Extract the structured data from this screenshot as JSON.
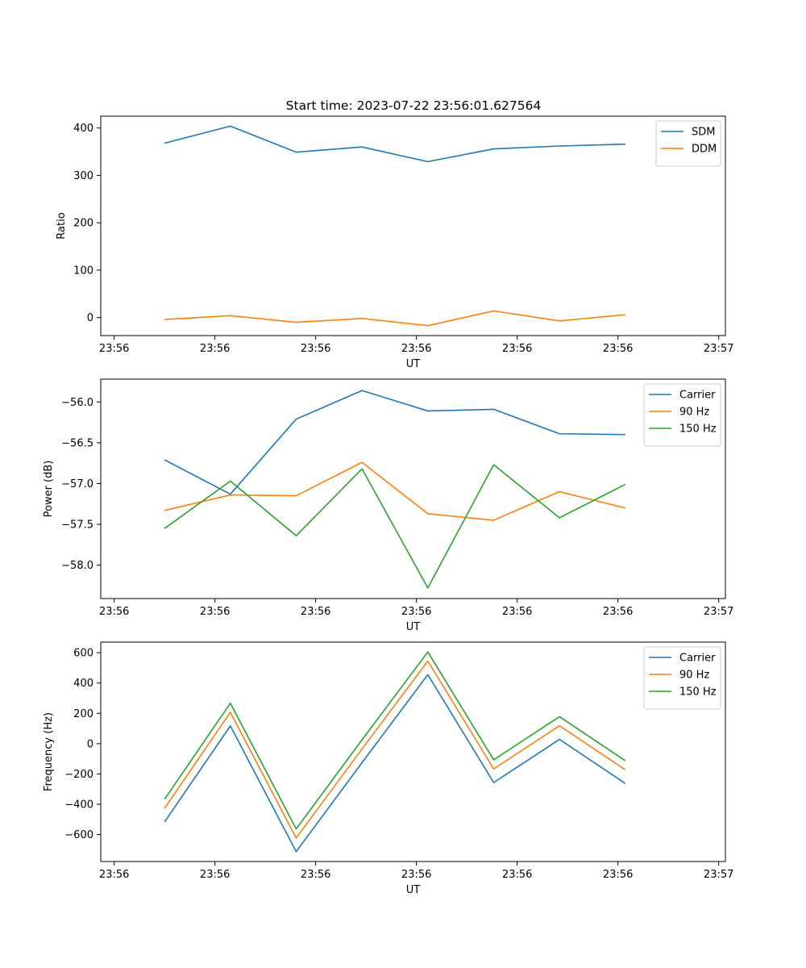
{
  "figure": {
    "title": "Start time: 2023-07-22 23:56:01.627564"
  },
  "chart_data": [
    {
      "type": "line",
      "xlabel": "UT",
      "ylabel": "Ratio",
      "xlim": [
        -0.2,
        9.1
      ],
      "xticks": [
        0,
        1.5,
        3,
        4.5,
        6,
        7.5,
        9
      ],
      "xtick_labels": [
        "23:56",
        "23:56",
        "23:56",
        "23:56",
        "23:56",
        "23:56",
        "23:57"
      ],
      "ylim": [
        -38,
        425
      ],
      "yticks": [
        0,
        100,
        200,
        300,
        400
      ],
      "ytick_labels": [
        "0",
        "100",
        "200",
        "300",
        "400"
      ],
      "x": [
        0.75,
        1.73,
        2.71,
        3.69,
        4.67,
        5.65,
        6.63,
        7.61
      ],
      "series": [
        {
          "name": "SDM",
          "color": "#1f77b4",
          "values": [
            368,
            404,
            349,
            360,
            329,
            356,
            362,
            366
          ]
        },
        {
          "name": "DDM",
          "color": "#ff7f0e",
          "values": [
            -4,
            4,
            -10,
            -2,
            -17,
            14,
            -7,
            6
          ]
        }
      ],
      "legend": "upper-right"
    },
    {
      "type": "line",
      "xlabel": "UT",
      "ylabel": "Power (dB)",
      "xlim": [
        -0.2,
        9.1
      ],
      "xticks": [
        0,
        1.5,
        3,
        4.5,
        6,
        7.5,
        9
      ],
      "xtick_labels": [
        "23:56",
        "23:56",
        "23:56",
        "23:56",
        "23:56",
        "23:56",
        "23:57"
      ],
      "ylim": [
        -58.41,
        -55.72
      ],
      "yticks": [
        -58.0,
        -57.5,
        -57.0,
        -56.5,
        -56.0
      ],
      "ytick_labels": [
        "−58.0",
        "−57.5",
        "−57.0",
        "−56.5",
        "−56.0"
      ],
      "x": [
        0.75,
        1.73,
        2.71,
        3.69,
        4.67,
        5.65,
        6.63,
        7.61
      ],
      "series": [
        {
          "name": "Carrier",
          "color": "#1f77b4",
          "values": [
            -56.71,
            -57.13,
            -56.21,
            -55.86,
            -56.11,
            -56.09,
            -56.39,
            -56.4
          ]
        },
        {
          "name": "90 Hz",
          "color": "#ff7f0e",
          "values": [
            -57.33,
            -57.14,
            -57.15,
            -56.74,
            -57.37,
            -57.45,
            -57.1,
            -57.3
          ]
        },
        {
          "name": "150 Hz",
          "color": "#2ca02c",
          "values": [
            -57.55,
            -56.97,
            -57.64,
            -56.82,
            -58.28,
            -56.77,
            -57.42,
            -57.01
          ]
        }
      ],
      "legend": "upper-right"
    },
    {
      "type": "line",
      "xlabel": "UT",
      "ylabel": "Frequency (Hz)",
      "xlim": [
        -0.2,
        9.1
      ],
      "xticks": [
        0,
        1.5,
        3,
        4.5,
        6,
        7.5,
        9
      ],
      "xtick_labels": [
        "23:56",
        "23:56",
        "23:56",
        "23:56",
        "23:56",
        "23:56",
        "23:57"
      ],
      "ylim": [
        -778,
        670
      ],
      "yticks": [
        -600,
        -400,
        -200,
        0,
        200,
        400,
        600
      ],
      "ytick_labels": [
        "−600",
        "−400",
        "−200",
        "0",
        "200",
        "400",
        "600"
      ],
      "x": [
        0.75,
        1.73,
        2.71,
        3.69,
        4.67,
        5.65,
        6.63,
        7.61
      ],
      "series": [
        {
          "name": "Carrier",
          "color": "#1f77b4",
          "values": [
            -517,
            117,
            -713,
            -125,
            455,
            -257,
            28,
            -263
          ]
        },
        {
          "name": "90 Hz",
          "color": "#ff7f0e",
          "values": [
            -427,
            207,
            -623,
            -35,
            545,
            -167,
            118,
            -173
          ]
        },
        {
          "name": "150 Hz",
          "color": "#2ca02c",
          "values": [
            -367,
            267,
            -563,
            25,
            605,
            -107,
            178,
            -113
          ]
        }
      ],
      "legend": "upper-right"
    }
  ]
}
